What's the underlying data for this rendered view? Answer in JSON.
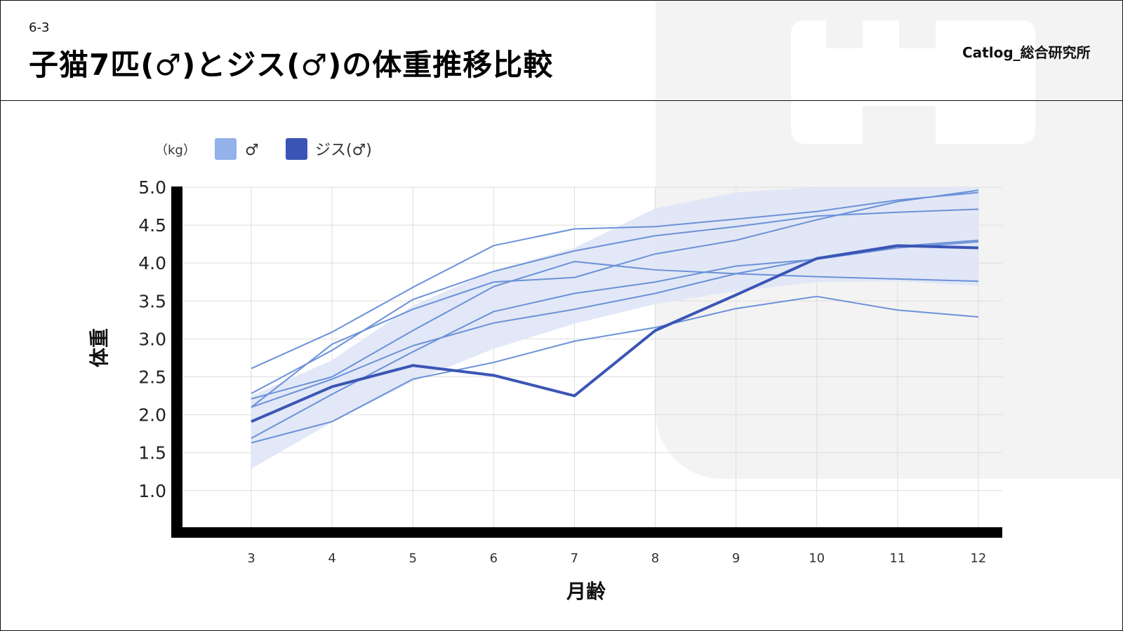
{
  "header": {
    "section_number": "6-3",
    "title": "子猫7匹(♂)とジス(♂)の体重推移比較",
    "brand": "Catlog_総合研究所"
  },
  "colors": {
    "male_band": "#dfe6f6",
    "male_line": "#6b91d9",
    "male_legend": "#93b1ea",
    "jisu_line": "#3a55b5",
    "grid": "#dddddd",
    "axis": "#000000"
  },
  "chart_data": {
    "type": "line",
    "ylabel": "体重",
    "xlabel": "月齢",
    "y_unit": "（kg）",
    "ylim": [
      0.5,
      5.0
    ],
    "x": [
      3,
      4,
      5,
      6,
      7,
      8,
      9,
      10,
      11,
      12
    ],
    "x_tick_labels": [
      "3",
      "4",
      "5",
      "6",
      "7",
      "8",
      "9",
      "10",
      "11",
      "12"
    ],
    "y_tick_labels": [
      "1.0",
      "1.5",
      "2.0",
      "2.5",
      "3.0",
      "3.5",
      "4.0",
      "4.5",
      "5.0"
    ],
    "y_ticks": [
      1.0,
      1.5,
      2.0,
      2.5,
      3.0,
      3.5,
      4.0,
      4.5,
      5.0
    ],
    "grid": true,
    "legend": {
      "position": "top-left",
      "items": [
        {
          "label": "♂",
          "color": "#93b1ea"
        },
        {
          "label": "ジス(♂)",
          "color": "#3a55b5"
        }
      ]
    },
    "band": {
      "x": [
        3,
        4,
        5,
        6,
        7,
        8,
        9,
        10,
        11,
        12
      ],
      "upper": [
        2.25,
        2.72,
        3.44,
        3.9,
        4.2,
        4.72,
        4.93,
        5.05,
        5.05,
        5.05
      ],
      "lower": [
        1.29,
        1.9,
        2.44,
        2.87,
        3.2,
        3.46,
        3.63,
        3.75,
        3.76,
        3.7
      ]
    },
    "series": [
      {
        "values": [
          2.61,
          3.09,
          3.68,
          4.23,
          4.45,
          4.48,
          4.58,
          4.68,
          4.83,
          4.93
        ]
      },
      {
        "values": [
          2.28,
          2.85,
          3.52,
          3.89,
          4.16,
          4.36,
          4.48,
          4.62,
          4.67,
          4.71
        ]
      },
      {
        "values": [
          2.1,
          2.93,
          3.39,
          3.75,
          3.81,
          4.12,
          4.3,
          4.57,
          4.81,
          4.96
        ]
      },
      {
        "values": [
          2.21,
          2.5,
          3.11,
          3.69,
          4.02,
          3.91,
          3.86,
          3.82,
          3.79,
          3.76
        ]
      },
      {
        "values": [
          2.1,
          2.47,
          2.91,
          3.21,
          3.39,
          3.6,
          3.86,
          4.06,
          4.22,
          4.3
        ]
      },
      {
        "values": [
          1.63,
          1.91,
          2.47,
          2.69,
          2.97,
          3.15,
          3.4,
          3.56,
          3.38,
          3.29
        ]
      },
      {
        "values": [
          1.69,
          2.27,
          2.83,
          3.36,
          3.6,
          3.75,
          3.96,
          4.05,
          4.2,
          4.28
        ]
      }
    ],
    "highlight": {
      "name": "ジス(♂)",
      "values": [
        1.91,
        2.37,
        2.65,
        2.52,
        2.25,
        3.11,
        3.58,
        4.06,
        4.23,
        4.2
      ]
    }
  }
}
